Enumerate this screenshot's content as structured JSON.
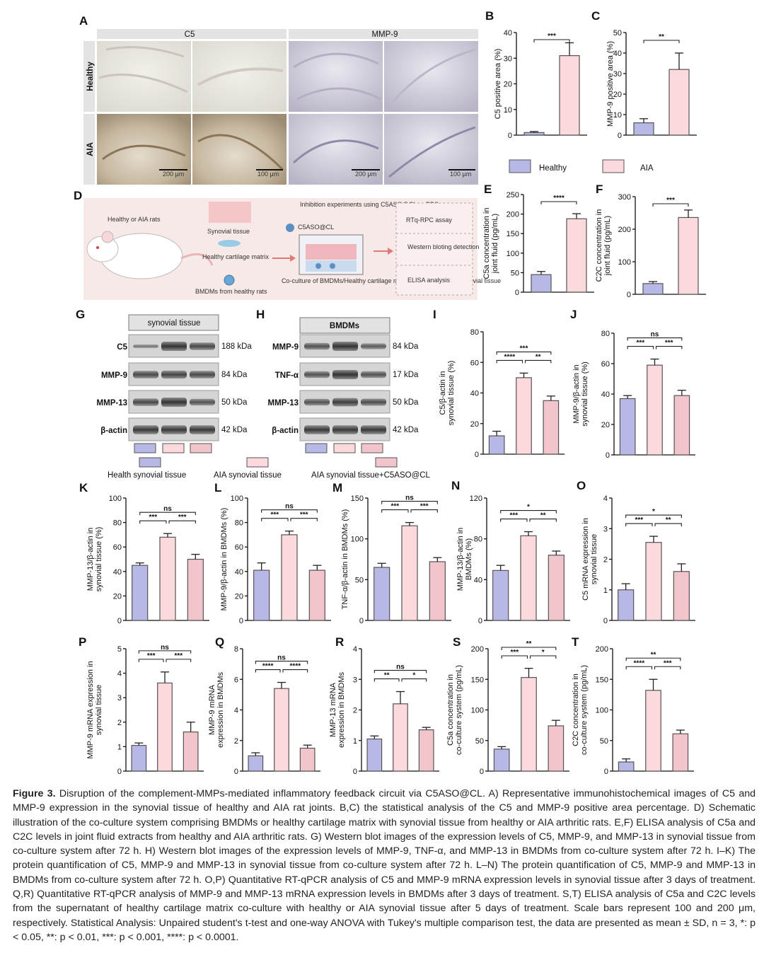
{
  "colors": {
    "healthy": "#b8b8e6",
    "aia": "#fbd9dc",
    "aia_cl": "#f2c4cb",
    "border": "#555555"
  },
  "panels": [
    "A",
    "B",
    "C",
    "D",
    "E",
    "F",
    "G",
    "H",
    "I",
    "J",
    "K",
    "L",
    "M",
    "N",
    "O",
    "P",
    "Q",
    "R",
    "S",
    "T"
  ],
  "panel_a": {
    "col1": "C5",
    "col2": "MMP-9",
    "row1": "Healthy",
    "row2": "AIA",
    "scale_200": "200 μm",
    "scale_100": "100 μm"
  },
  "legend_top": {
    "healthy": "Healthy",
    "aia": "AIA"
  },
  "panel_d": {
    "rats": "Healthy or AIA rats",
    "synovial": "Synovial tissue",
    "cartilage": "Healthy cartilage matrix",
    "bmdm": "BMDMs from healthy rats",
    "inhibition": "Inhibition experiments using C5ASO@CL or PBS",
    "aso": "C5ASO@CL",
    "coculture": "Co-culture of BMDMs/Healthy cartilage matrix with healthy/AIA synovial tissue",
    "assay1": "RTq-RPC assay",
    "assay2": "Western bloting detection",
    "assay3": "ELISA analysis"
  },
  "panel_g": {
    "header": "synovial tissue",
    "rows": [
      {
        "name": "C5",
        "kda": "188 kDa"
      },
      {
        "name": "MMP-9",
        "kda": "84 kDa"
      },
      {
        "name": "MMP-13",
        "kda": "50 kDa"
      },
      {
        "name": "β-actin",
        "kda": "42 kDa"
      }
    ]
  },
  "panel_h": {
    "header": "BMDMs",
    "rows": [
      {
        "name": "MMP-9",
        "kda": "84 kDa"
      },
      {
        "name": "TNF-α",
        "kda": "17 kDa"
      },
      {
        "name": "MMP-13",
        "kda": "50 kDa"
      },
      {
        "name": "β-actin",
        "kda": "42 kDa"
      }
    ]
  },
  "legend_mid": {
    "l1": "Health synovial tissue",
    "l2": "AIA synovial tissue",
    "l3": "AIA synovial tissue+C5ASO@CL"
  },
  "chart_data": [
    {
      "panel": "B",
      "type": "bar",
      "ylabel": "C5 positive area (%)",
      "ylim": [
        0,
        40
      ],
      "ticks": [
        0,
        10,
        20,
        30,
        40
      ],
      "values": [
        1,
        31
      ],
      "errors": [
        0.4,
        5
      ],
      "series_colors": [
        "healthy",
        "aia"
      ],
      "sig": [
        {
          "a": 0,
          "b": 1,
          "t": "***"
        }
      ]
    },
    {
      "panel": "C",
      "type": "bar",
      "ylabel": "MMP-9 positive area (%)",
      "ylim": [
        0,
        50
      ],
      "ticks": [
        0,
        10,
        20,
        30,
        40,
        50
      ],
      "values": [
        6,
        32
      ],
      "errors": [
        2,
        8
      ],
      "series_colors": [
        "healthy",
        "aia"
      ],
      "sig": [
        {
          "a": 0,
          "b": 1,
          "t": "**"
        }
      ]
    },
    {
      "panel": "E",
      "type": "bar",
      "ylabel": "C5a concentration in joint fluid (pg/mL)",
      "ylim": [
        0,
        250
      ],
      "ticks": [
        0,
        50,
        100,
        150,
        200,
        250
      ],
      "values": [
        45,
        188
      ],
      "errors": [
        8,
        13
      ],
      "series_colors": [
        "healthy",
        "aia"
      ],
      "sig": [
        {
          "a": 0,
          "b": 1,
          "t": "****"
        }
      ]
    },
    {
      "panel": "F",
      "type": "bar",
      "ylabel": "C2C concentration in joint fluid (pg/mL)",
      "ylim": [
        0,
        300
      ],
      "ticks": [
        0,
        100,
        200,
        300
      ],
      "values": [
        33,
        236
      ],
      "errors": [
        6,
        23
      ],
      "series_colors": [
        "healthy",
        "aia"
      ],
      "sig": [
        {
          "a": 0,
          "b": 1,
          "t": "***"
        }
      ]
    },
    {
      "panel": "I",
      "type": "bar",
      "ylabel": "C5/β-actin in synovial tissue (%)",
      "ylim": [
        0,
        80
      ],
      "ticks": [
        0,
        20,
        40,
        60,
        80
      ],
      "values": [
        12,
        50,
        35
      ],
      "errors": [
        3,
        3,
        3
      ],
      "series_colors": [
        "healthy",
        "aia",
        "aia_cl"
      ],
      "sig": [
        {
          "a": 0,
          "b": 2,
          "t": "***"
        },
        {
          "a": 0,
          "b": 1,
          "t": "****"
        },
        {
          "a": 1,
          "b": 2,
          "t": "**"
        }
      ]
    },
    {
      "panel": "J",
      "type": "bar",
      "ylabel": "MMP-9/β-actin in synovial tissue (%)",
      "ylim": [
        0,
        80
      ],
      "ticks": [
        0,
        20,
        40,
        60,
        80
      ],
      "values": [
        37,
        59,
        39
      ],
      "errors": [
        2,
        4,
        3.5
      ],
      "series_colors": [
        "healthy",
        "aia",
        "aia_cl"
      ],
      "sig": [
        {
          "a": 0,
          "b": 2,
          "t": "ns"
        },
        {
          "a": 0,
          "b": 1,
          "t": "***"
        },
        {
          "a": 1,
          "b": 2,
          "t": "***"
        }
      ]
    },
    {
      "panel": "K",
      "type": "bar",
      "ylabel": "MMP-13/β-actin in synovial tissue (%)",
      "ylim": [
        0,
        100
      ],
      "ticks": [
        0,
        20,
        40,
        60,
        80,
        100
      ],
      "values": [
        45,
        68,
        50
      ],
      "errors": [
        2,
        3,
        4
      ],
      "series_colors": [
        "healthy",
        "aia",
        "aia_cl"
      ],
      "sig": [
        {
          "a": 0,
          "b": 2,
          "t": "ns"
        },
        {
          "a": 0,
          "b": 1,
          "t": "***"
        },
        {
          "a": 1,
          "b": 2,
          "t": "***"
        }
      ]
    },
    {
      "panel": "L",
      "type": "bar",
      "ylabel": "MMP-9/β-actin in BMDMs (%)",
      "ylim": [
        0,
        100
      ],
      "ticks": [
        0,
        20,
        40,
        60,
        80,
        100
      ],
      "values": [
        41,
        70,
        41
      ],
      "errors": [
        6,
        3,
        4
      ],
      "series_colors": [
        "healthy",
        "aia",
        "aia_cl"
      ],
      "sig": [
        {
          "a": 0,
          "b": 2,
          "t": "ns"
        },
        {
          "a": 0,
          "b": 1,
          "t": "***"
        },
        {
          "a": 1,
          "b": 2,
          "t": "***"
        }
      ]
    },
    {
      "panel": "M",
      "type": "bar",
      "ylabel": "TNF-α/β-actin in BMDMs (%)",
      "ylim": [
        0,
        150
      ],
      "ticks": [
        0,
        50,
        100,
        150
      ],
      "values": [
        65,
        116,
        72
      ],
      "errors": [
        5,
        4,
        5
      ],
      "series_colors": [
        "healthy",
        "aia",
        "aia_cl"
      ],
      "sig": [
        {
          "a": 0,
          "b": 2,
          "t": "ns"
        },
        {
          "a": 0,
          "b": 1,
          "t": "***"
        },
        {
          "a": 1,
          "b": 2,
          "t": "***"
        }
      ]
    },
    {
      "panel": "N",
      "type": "bar",
      "ylabel": "MMP-13/β-actin in BMDMs (%)",
      "ylim": [
        0,
        120
      ],
      "ticks": [
        0,
        40,
        80,
        120
      ],
      "values": [
        49,
        83,
        64
      ],
      "errors": [
        5,
        4,
        4
      ],
      "series_colors": [
        "healthy",
        "aia",
        "aia_cl"
      ],
      "sig": [
        {
          "a": 0,
          "b": 2,
          "t": "*"
        },
        {
          "a": 0,
          "b": 1,
          "t": "***"
        },
        {
          "a": 1,
          "b": 2,
          "t": "**"
        }
      ]
    },
    {
      "panel": "O",
      "type": "bar",
      "ylabel": "C5 mRNA expression in synovial tissue",
      "ylim": [
        0,
        4
      ],
      "ticks": [
        0,
        1,
        2,
        3,
        4
      ],
      "values": [
        1,
        2.55,
        1.6
      ],
      "errors": [
        0.2,
        0.2,
        0.25
      ],
      "series_colors": [
        "healthy",
        "aia",
        "aia_cl"
      ],
      "sig": [
        {
          "a": 0,
          "b": 2,
          "t": "*"
        },
        {
          "a": 0,
          "b": 1,
          "t": "***"
        },
        {
          "a": 1,
          "b": 2,
          "t": "**"
        }
      ]
    },
    {
      "panel": "P",
      "type": "bar",
      "ylabel": "MMP-9 mRNA expression in synovial tissue",
      "ylim": [
        0,
        5
      ],
      "ticks": [
        0,
        1,
        2,
        3,
        4,
        5
      ],
      "values": [
        1.05,
        3.6,
        1.6
      ],
      "errors": [
        0.1,
        0.45,
        0.4
      ],
      "series_colors": [
        "healthy",
        "aia",
        "aia_cl"
      ],
      "sig": [
        {
          "a": 0,
          "b": 2,
          "t": "ns"
        },
        {
          "a": 0,
          "b": 1,
          "t": "***"
        },
        {
          "a": 1,
          "b": 2,
          "t": "***"
        }
      ]
    },
    {
      "panel": "Q",
      "type": "bar",
      "ylabel": "MMP-9 mRNA expression in BMDMs",
      "ylim": [
        0,
        8
      ],
      "ticks": [
        0,
        2,
        4,
        6,
        8
      ],
      "values": [
        1,
        5.4,
        1.5
      ],
      "errors": [
        0.2,
        0.4,
        0.2
      ],
      "series_colors": [
        "healthy",
        "aia",
        "aia_cl"
      ],
      "sig": [
        {
          "a": 0,
          "b": 2,
          "t": "ns"
        },
        {
          "a": 0,
          "b": 1,
          "t": "****"
        },
        {
          "a": 1,
          "b": 2,
          "t": "****"
        }
      ]
    },
    {
      "panel": "R",
      "type": "bar",
      "ylabel": "MMP-13 mRNA expression in BMDMs",
      "ylim": [
        0,
        4
      ],
      "ticks": [
        0,
        1,
        2,
        3,
        4
      ],
      "values": [
        1.05,
        2.2,
        1.35
      ],
      "errors": [
        0.1,
        0.4,
        0.08
      ],
      "series_colors": [
        "healthy",
        "aia",
        "aia_cl"
      ],
      "sig": [
        {
          "a": 0,
          "b": 2,
          "t": "ns"
        },
        {
          "a": 0,
          "b": 1,
          "t": "**"
        },
        {
          "a": 1,
          "b": 2,
          "t": "*"
        }
      ]
    },
    {
      "panel": "S",
      "type": "bar",
      "ylabel": "C5a concentration in co-culture system (pg/mL)",
      "ylim": [
        0,
        200
      ],
      "ticks": [
        0,
        50,
        100,
        150,
        200
      ],
      "values": [
        36,
        153,
        74
      ],
      "errors": [
        4,
        15,
        9
      ],
      "series_colors": [
        "healthy",
        "aia",
        "aia_cl"
      ],
      "sig": [
        {
          "a": 0,
          "b": 2,
          "t": "**"
        },
        {
          "a": 0,
          "b": 1,
          "t": "***"
        },
        {
          "a": 1,
          "b": 2,
          "t": "*"
        }
      ]
    },
    {
      "panel": "T",
      "type": "bar",
      "ylabel": "C2C concentration in co-culture system (pg/mL)",
      "ylim": [
        0,
        200
      ],
      "ticks": [
        0,
        50,
        100,
        150,
        200
      ],
      "values": [
        15,
        132,
        61
      ],
      "errors": [
        5,
        18,
        6
      ],
      "series_colors": [
        "healthy",
        "aia",
        "aia_cl"
      ],
      "sig": [
        {
          "a": 0,
          "b": 2,
          "t": "**"
        },
        {
          "a": 0,
          "b": 1,
          "t": "****"
        },
        {
          "a": 1,
          "b": 2,
          "t": "***"
        }
      ]
    }
  ],
  "caption": {
    "label": "Figure 3.",
    "text": " Disruption of the complement-MMPs-mediated inflammatory feedback circuit via C5ASO@CL. A) Representative immunohistochemical images of C5 and MMP-9 expression in the synovial tissue of healthy and AIA rat joints. B,C) the statistical analysis of the C5 and MMP-9 positive area percentage. D) Schematic illustration of the co-culture system comprising BMDMs or healthy cartilage matrix with synovial tissue from healthy or AIA arthritic rats. E,F) ELISA analysis of C5a and C2C levels in joint fluid extracts from healthy and AIA arthritic rats. G) Western blot images of the expression levels of C5, MMP-9, and MMP-13 in synovial tissue from co-culture system after 72 h. H) Western blot images of the expression levels of MMP-9, TNF-α, and MMP-13 in BMDMs from co-culture system after 72 h. I–K) The protein quantification of C5, MMP-9 and MMP-13 in synovial tissue from co-culture system after 72 h. L–N) The protein quantification of C5, MMP-9 and MMP-13 in BMDMs from co-culture system after 72 h. O,P) Quantitative RT-qPCR analysis of C5 and MMP-9 mRNA expression levels in synovial tissue after 3 days of treatment. Q,R) Quantitative RT-qPCR analysis of MMP-9 and MMP-13 mRNA expression levels in BMDMs after 3 days of treatment. S,T) ELISA analysis of C5a and C2C levels from the supernatant of healthy cartilage matrix co-culture with healthy or AIA synovial tissue after 5 days of treatment. Scale bars represent 100 and 200 μm, respectively. Statistical Analysis: Unpaired student's t-test and one-way ANOVA with Tukey's multiple comparison test, the data are presented as mean ± SD, n = 3, *: p < 0.05, **: p < 0.01, ***: p < 0.001, ****: p < 0.0001."
  }
}
